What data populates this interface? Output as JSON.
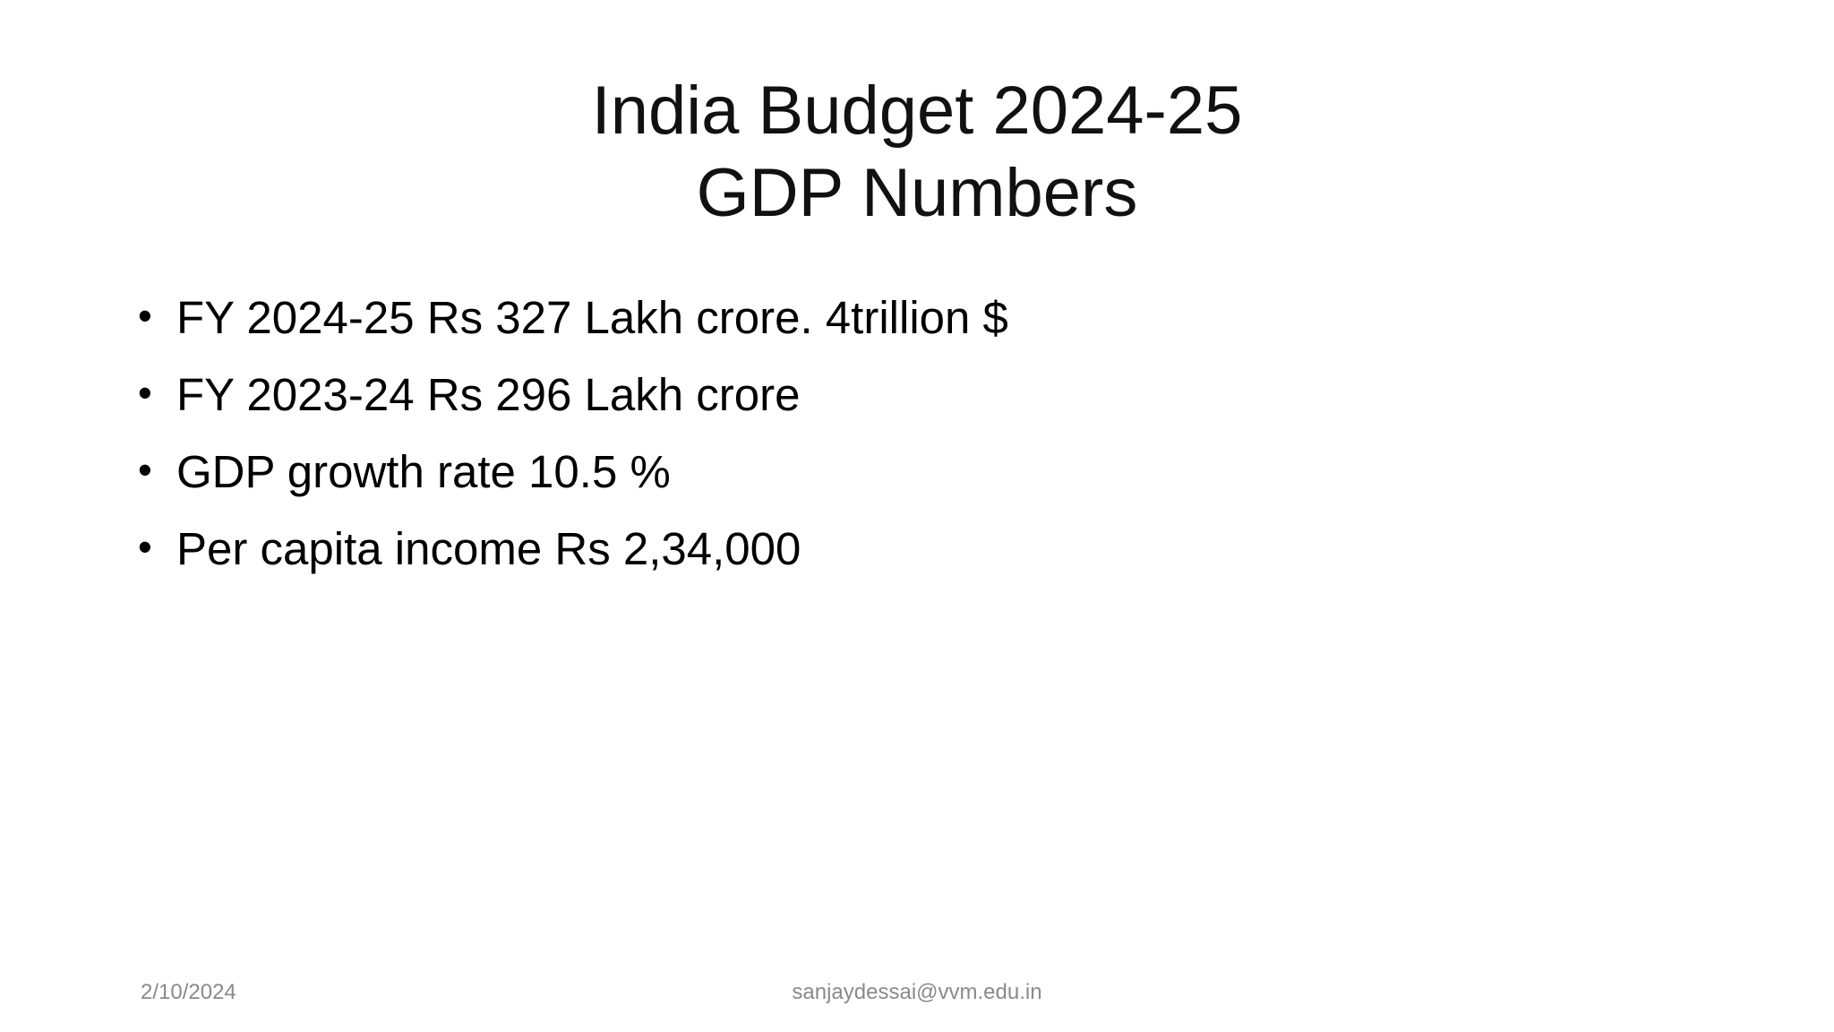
{
  "slide": {
    "title_line_1": "India Budget 2024-25",
    "title_line_2": "GDP Numbers",
    "bullets": [
      "FY 2024-25 Rs 327 Lakh crore. 4trillion $",
      "FY 2023-24 Rs 296 Lakh crore",
      "GDP growth rate 10.5 %",
      "Per capita income Rs 2,34,000"
    ],
    "footer": {
      "date": "2/10/2024",
      "email": "sanjaydessai@vvm.edu.in"
    }
  }
}
